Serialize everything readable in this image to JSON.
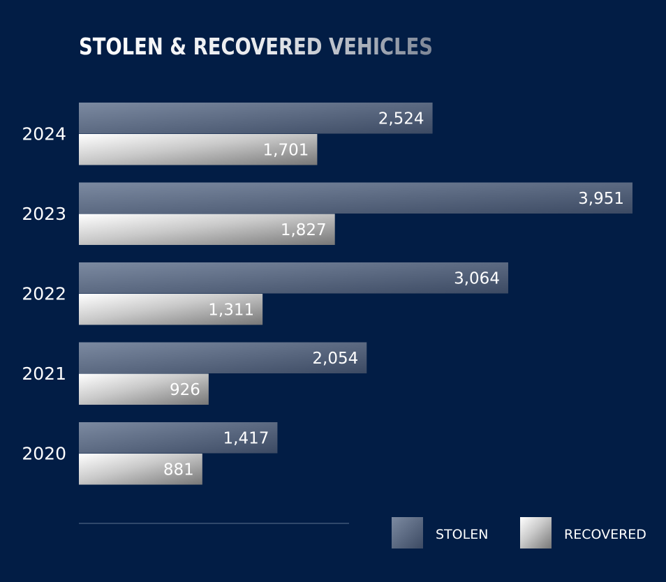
{
  "chart_data": {
    "type": "bar",
    "orientation": "horizontal",
    "title": "STOLEN & RECOVERED VEHICLES",
    "categories": [
      "2024",
      "2023",
      "2022",
      "2021",
      "2020"
    ],
    "series": [
      {
        "name": "STOLEN",
        "values": [
          2524,
          3951,
          3064,
          2054,
          1417
        ],
        "labels": [
          "2,524",
          "3,951",
          "3,064",
          "2,054",
          "1,417"
        ],
        "color": "#5c6d88"
      },
      {
        "name": "RECOVERED",
        "values": [
          1701,
          1827,
          1311,
          926,
          881
        ],
        "labels": [
          "1,701",
          "1,827",
          "1,311",
          "926",
          "881"
        ],
        "color": "#d9d9d9"
      }
    ],
    "xlim": [
      0,
      3951
    ],
    "grid": false,
    "legend": "bottom-right"
  },
  "colors": {
    "background": "#021d45",
    "title_light": "#ffffff",
    "title_dark": "#8a93a3",
    "stolen_start": "#7a889f",
    "stolen_end": "#3f4d66",
    "recovered_start": "#ffffff",
    "recovered_end": "#7a7a7a"
  }
}
